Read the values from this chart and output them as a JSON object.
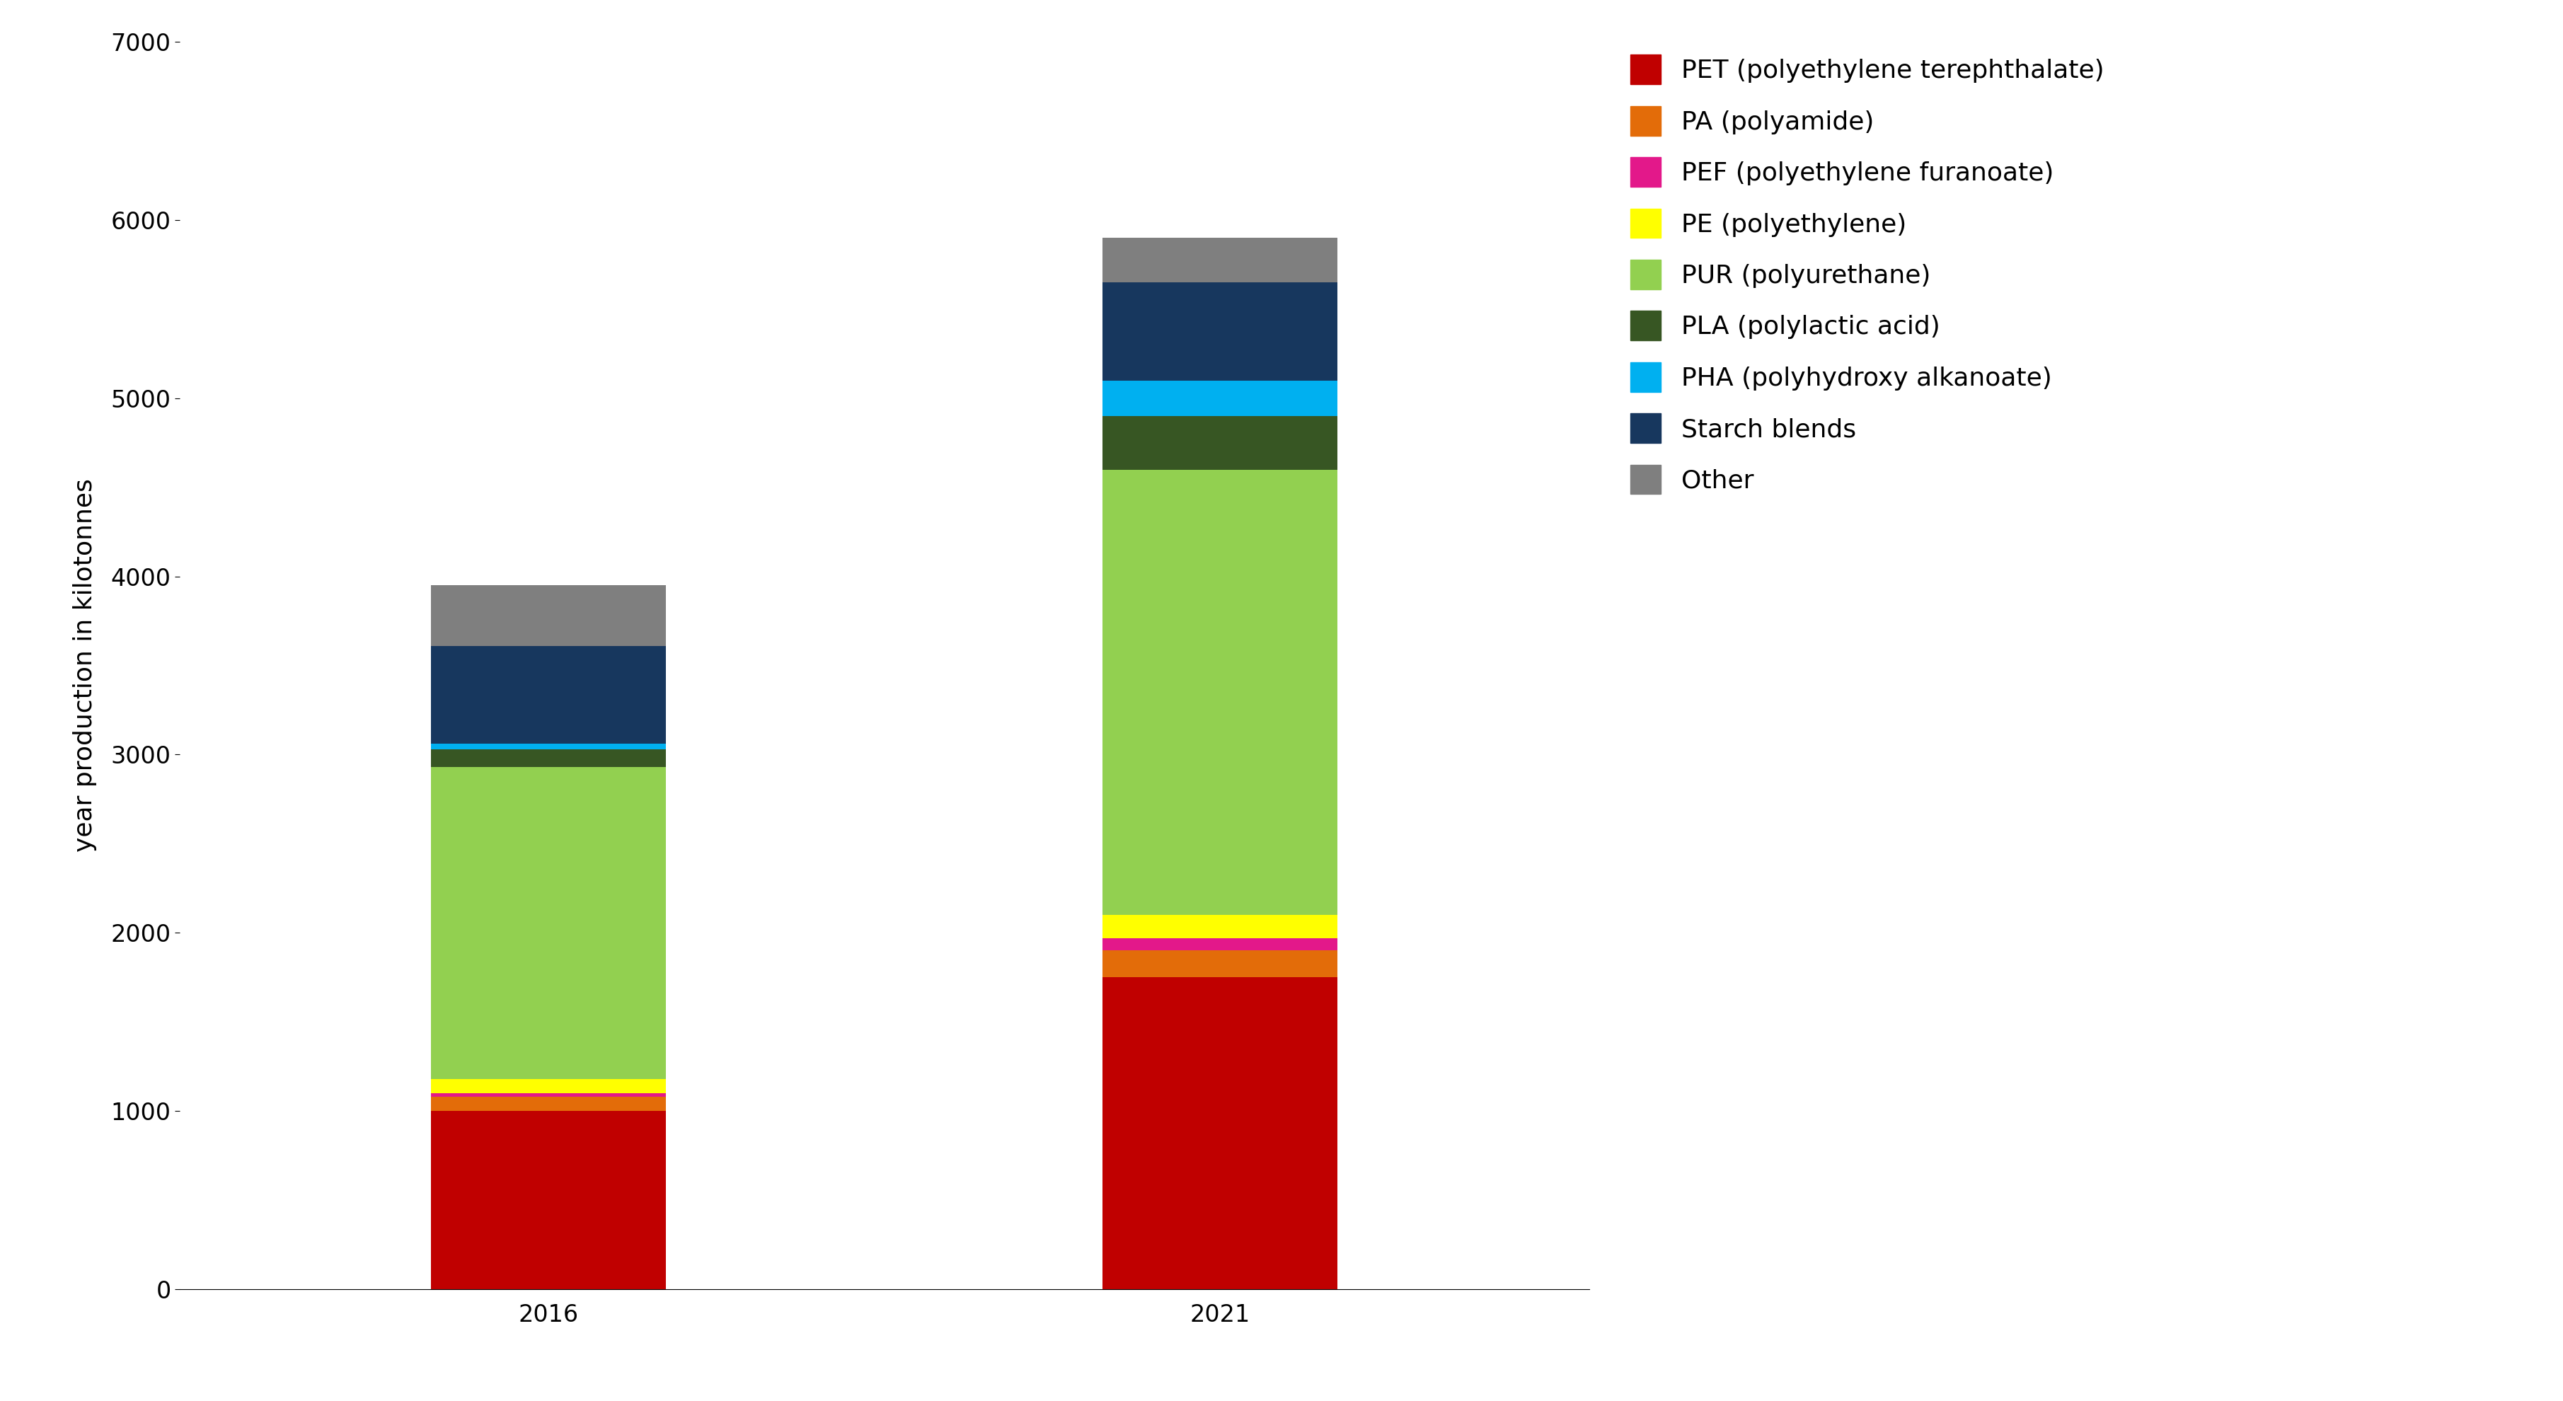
{
  "categories": [
    "2016",
    "2021"
  ],
  "segments": [
    {
      "label": "PET (polyethylene terephthalate)",
      "color": "#c00000",
      "values": [
        1000,
        1750
      ]
    },
    {
      "label": "PA (polyamide)",
      "color": "#e36c09",
      "values": [
        80,
        150
      ]
    },
    {
      "label": "PEF (polyethylene furanoate)",
      "color": "#e3188a",
      "values": [
        20,
        70
      ]
    },
    {
      "label": "PE (polyethylene)",
      "color": "#ffff00",
      "values": [
        80,
        130
      ]
    },
    {
      "label": "PUR (polyurethane)",
      "color": "#92d050",
      "values": [
        1750,
        2500
      ]
    },
    {
      "label": "PLA (polylactic acid)",
      "color": "#375623",
      "values": [
        100,
        300
      ]
    },
    {
      "label": "PHA (polyhydroxy alkanoate)",
      "color": "#00b0f0",
      "values": [
        30,
        200
      ]
    },
    {
      "label": "Starch blends",
      "color": "#17375e",
      "values": [
        550,
        550
      ]
    },
    {
      "label": "Other",
      "color": "#7f7f7f",
      "values": [
        340,
        250
      ]
    }
  ],
  "ylabel": "year production in kilotonnes",
  "ylim": [
    0,
    7000
  ],
  "yticks": [
    0,
    1000,
    2000,
    3000,
    4000,
    5000,
    6000,
    7000
  ],
  "background_color": "#ffffff",
  "bar_width": 0.35,
  "legend_fontsize": 26,
  "ylabel_fontsize": 26,
  "tick_fontsize": 24,
  "x_positions": [
    0,
    1
  ]
}
